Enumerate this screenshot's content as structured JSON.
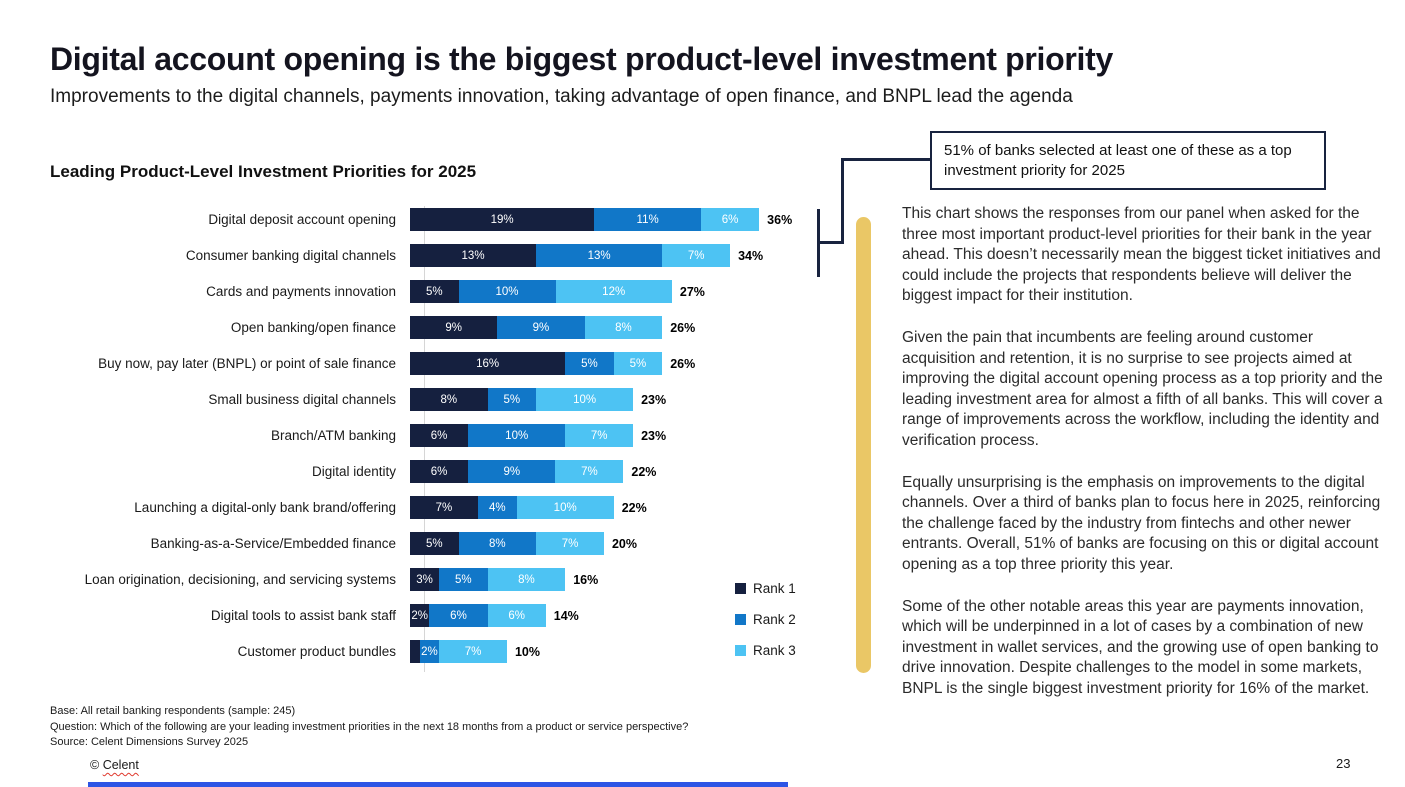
{
  "slide": {
    "title": "Digital account opening is the biggest product-level investment priority",
    "subtitle": "Improvements to the digital channels, payments innovation, taking advantage of open finance, and BNPL lead the agenda",
    "page_number": "23"
  },
  "chart": {
    "title": "Leading Product-Level Investment Priorities for 2025"
  },
  "chart_data": {
    "type": "bar",
    "orientation": "horizontal",
    "stacked": true,
    "title": "Leading Product-Level Investment Priorities for 2025",
    "categories": [
      "Digital deposit account opening",
      "Consumer banking digital channels",
      "Cards and payments innovation",
      "Open banking/open finance",
      "Buy now, pay later (BNPL) or point of sale finance",
      "Small business digital channels",
      "Branch/ATM banking",
      "Digital identity",
      "Launching a digital-only bank brand/offering",
      "Banking-as-a-Service/Embedded finance",
      "Loan origination, decisioning, and servicing systems",
      "Digital tools to assist bank staff",
      "Customer product bundles"
    ],
    "series": [
      {
        "name": "Rank 1",
        "color": "#15203f",
        "values": [
          19,
          13,
          5,
          9,
          16,
          8,
          6,
          6,
          7,
          5,
          3,
          2,
          1
        ]
      },
      {
        "name": "Rank 2",
        "color": "#1177c8",
        "values": [
          11,
          13,
          10,
          9,
          5,
          5,
          10,
          9,
          4,
          8,
          5,
          6,
          2
        ]
      },
      {
        "name": "Rank 3",
        "color": "#4dc3f3",
        "values": [
          6,
          7,
          12,
          8,
          5,
          10,
          7,
          7,
          10,
          7,
          8,
          6,
          7
        ]
      }
    ],
    "totals": [
      "36%",
      "34%",
      "27%",
      "26%",
      "26%",
      "23%",
      "23%",
      "22%",
      "22%",
      "20%",
      "16%",
      "14%",
      "10%"
    ],
    "value_label_format": "percent",
    "min_label_value": 2,
    "xlim": [
      0,
      40
    ],
    "legend_position": "right-bottom",
    "grid": false
  },
  "callout": {
    "text": "51% of banks selected at least one of these as a top investment priority for 2025"
  },
  "panel": {
    "paragraphs": [
      "This chart shows the responses from our panel when asked for the three most important product-level priorities for their bank in the year ahead. This doesn’t necessarily mean the biggest ticket initiatives and could include the projects that respondents believe will deliver the biggest impact for their institution.",
      "Given the pain that incumbents are feeling around customer acquisition and retention, it is no surprise to see projects aimed at improving the digital account opening process as a top priority and the leading investment area for almost a fifth of all banks. This will cover a range of improvements across the workflow, including the identity and verification process.",
      "Equally unsurprising is the emphasis on improvements to the digital channels. Over a third of banks plan to focus here in 2025, reinforcing the challenge faced by the industry from fintechs and other newer entrants. Overall, 51% of banks are focusing on this or digital account opening as a top three priority this year.",
      "Some of the other notable areas this year are payments innovation, which will be underpinned in a lot of cases by a combination of new investment in wallet services, and the growing use of open banking to drive innovation. Despite challenges to the model in some markets, BNPL is the single biggest investment priority for 16% of the market."
    ]
  },
  "footnotes": {
    "base": "Base: All retail banking respondents (sample: 245)",
    "question": "Question: Which of the following are your leading investment priorities in the next 18 months from a product or service perspective?",
    "source": "Source: Celent Dimensions Survey 2025"
  },
  "footer": {
    "copyright_prefix": "© ",
    "brand": "Celent"
  },
  "colors": {
    "rank1": "#15203f",
    "rank2": "#1177c8",
    "rank3": "#4dc3f3",
    "accent_yellow": "#eac766",
    "callout_navy": "#18233f",
    "bottom_bar_blue": "#2d55e5"
  }
}
